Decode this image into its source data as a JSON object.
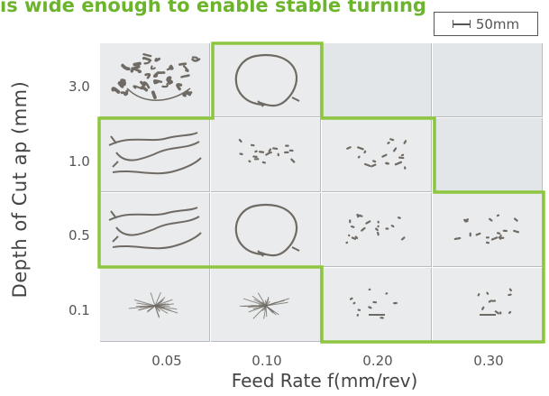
{
  "title": "is wide enough to enable stable turning",
  "scale_label": "50mm",
  "y_axis": {
    "label": "Depth of Cut ap (mm)",
    "ticks": [
      "3.0",
      "1.0",
      "0.5",
      "0.1"
    ]
  },
  "x_axis": {
    "label": "Feed Rate f(mm/rev)",
    "ticks": [
      "0.05",
      "0.10",
      "0.20",
      "0.30"
    ]
  },
  "colors": {
    "highlight": "#8dc63f",
    "title": "#6cb42c",
    "chip": "#6f6a63",
    "photo_bg": "#e9ebed",
    "empty_bg": "#e3e6e9"
  },
  "cells": [
    {
      "row": 0,
      "col": 0,
      "chip": "tangled"
    },
    {
      "row": 0,
      "col": 1,
      "chip": "loop"
    },
    {
      "row": 0,
      "col": 2,
      "chip": "empty"
    },
    {
      "row": 0,
      "col": 3,
      "chip": "empty"
    },
    {
      "row": 1,
      "col": 0,
      "chip": "long-curls"
    },
    {
      "row": 1,
      "col": 1,
      "chip": "fragments"
    },
    {
      "row": 1,
      "col": 2,
      "chip": "fragments"
    },
    {
      "row": 1,
      "col": 3,
      "chip": "empty"
    },
    {
      "row": 2,
      "col": 0,
      "chip": "long-curls"
    },
    {
      "row": 2,
      "col": 1,
      "chip": "loop"
    },
    {
      "row": 2,
      "col": 2,
      "chip": "fragments"
    },
    {
      "row": 2,
      "col": 3,
      "chip": "fragments"
    },
    {
      "row": 3,
      "col": 0,
      "chip": "wire-bundle"
    },
    {
      "row": 3,
      "col": 1,
      "chip": "wire-bundle"
    },
    {
      "row": 3,
      "col": 2,
      "chip": "small-fragments"
    },
    {
      "row": 3,
      "col": 3,
      "chip": "small-fragments"
    }
  ]
}
